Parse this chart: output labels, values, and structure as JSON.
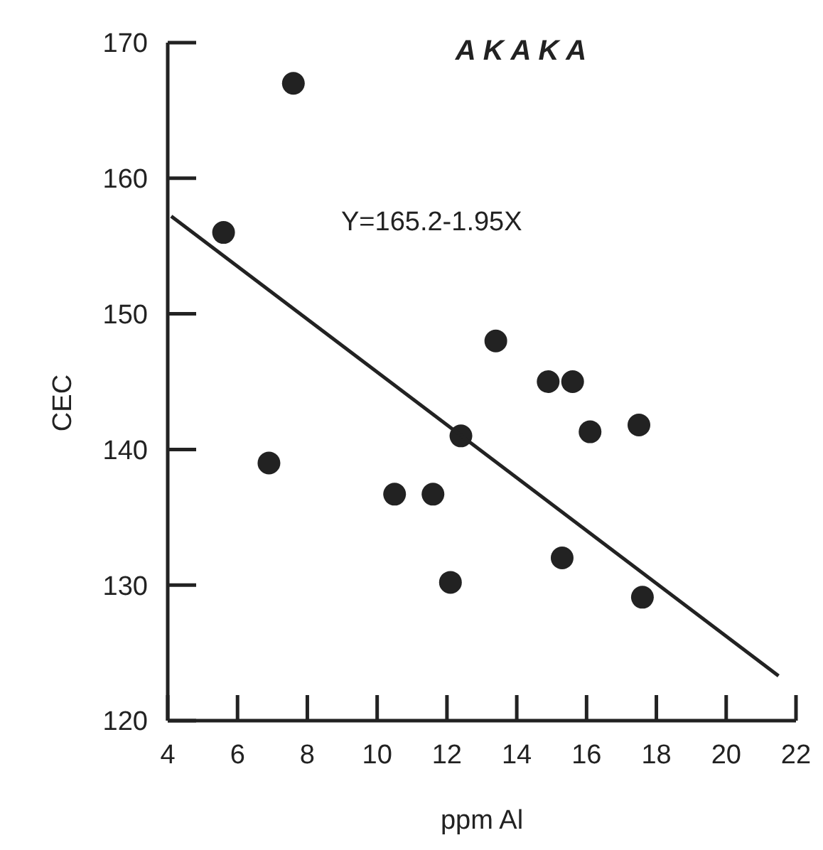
{
  "chart_data": {
    "type": "scatter",
    "title": "AKAKA",
    "xlabel": "ppm Al",
    "ylabel": "CEC",
    "annotations": [
      "Y=165.2-1.95X"
    ],
    "xlim": [
      4,
      22
    ],
    "xticks": [
      4,
      6,
      8,
      10,
      12,
      14,
      16,
      18,
      20,
      22
    ],
    "ylim": [
      120,
      170
    ],
    "yticks": [
      120,
      130,
      140,
      150,
      160,
      170
    ],
    "grid": false,
    "marker": "circle",
    "series": [
      {
        "color": "#222222",
        "x": [
          5.6,
          7.6,
          6.9,
          10.5,
          11.6,
          12.4,
          12.1,
          13.4,
          14.9,
          15.6,
          16.1,
          17.5,
          15.3,
          17.6
        ],
        "values": [
          156,
          167,
          139,
          136.7,
          136.7,
          141,
          130.2,
          148,
          145,
          145,
          141.3,
          141.8,
          132,
          129.1
        ]
      },
      {
        "type": "line",
        "color": "#222222",
        "marker": "none",
        "x": [
          4.1,
          21.5
        ],
        "values": [
          157.2,
          123.3
        ]
      }
    ]
  }
}
